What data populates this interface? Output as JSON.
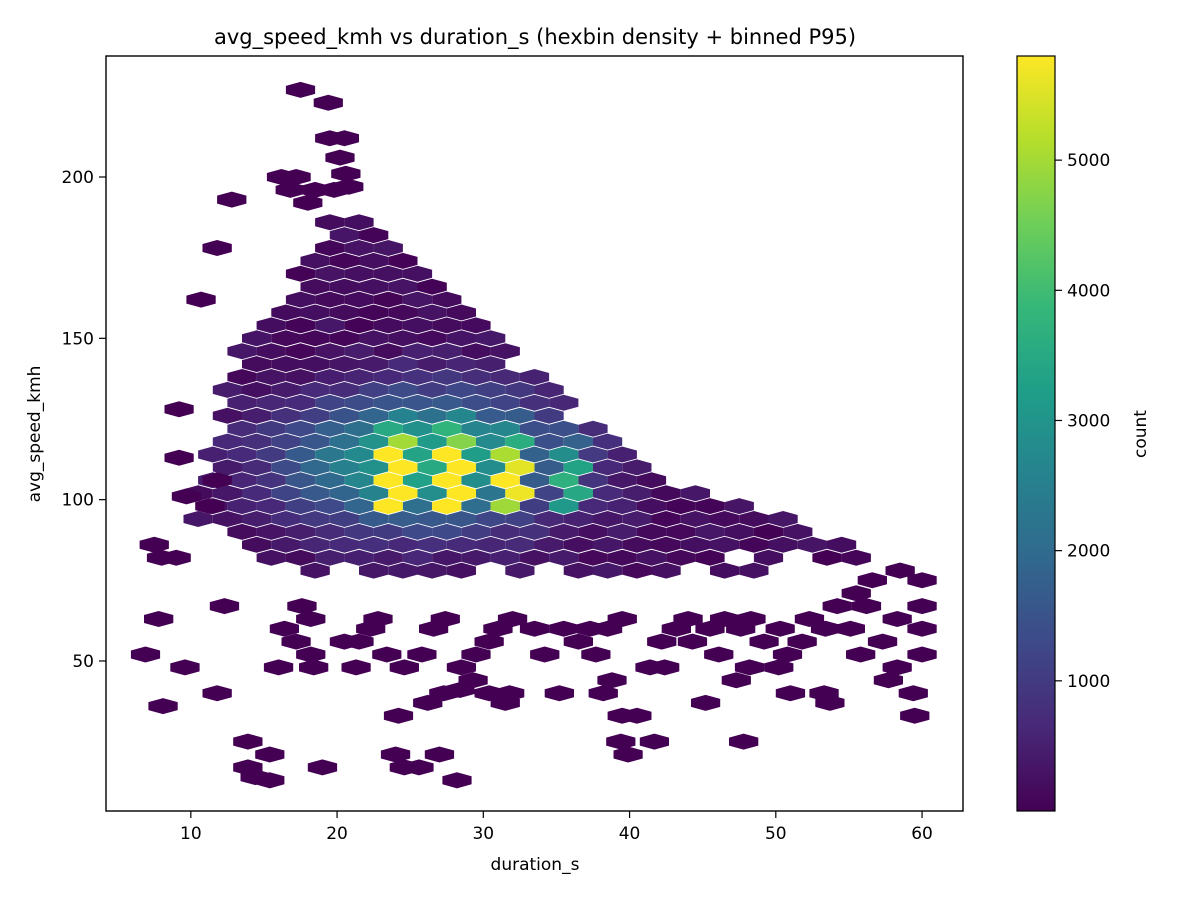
{
  "chart_data": {
    "type": "heatmap",
    "subtype": "hexbin",
    "title": "avg_speed_kmh vs duration_s (hexbin density + binned P95)",
    "xlabel": "duration_s",
    "ylabel": "avg_speed_kmh",
    "xlim": [
      4.2,
      62.8
    ],
    "ylim": [
      3.5,
      237.5
    ],
    "xticks": [
      10,
      20,
      30,
      40,
      50,
      60
    ],
    "yticks": [
      50,
      100,
      150,
      200
    ],
    "hex_grid": {
      "dx": 1.0,
      "dy": 4.0
    },
    "colormap": "viridis",
    "colors": [
      "#440154",
      "#482878",
      "#3e4989",
      "#31688e",
      "#26828e",
      "#1f9e89",
      "#35b779",
      "#6ece58",
      "#b5de2b",
      "#fde725"
    ],
    "colorbar": {
      "label": "count",
      "min": 0,
      "max": 5800,
      "ticks": [
        1000,
        2000,
        3000,
        4000,
        5000
      ]
    },
    "grid": false,
    "dense_region": {
      "x_range": [
        10.5,
        58.5
      ],
      "y_lower_boundary": [
        [
          10.5,
          94
        ],
        [
          13,
          86
        ],
        [
          15,
          80
        ],
        [
          20,
          77
        ],
        [
          30,
          78
        ],
        [
          40,
          76
        ],
        [
          50,
          78
        ],
        [
          55,
          80
        ],
        [
          58.5,
          77
        ]
      ],
      "y_upper_boundary": [
        [
          10.5,
          108
        ],
        [
          12,
          122
        ],
        [
          13,
          150
        ],
        [
          16,
          156
        ],
        [
          18,
          184
        ],
        [
          22,
          190
        ],
        [
          26,
          176
        ],
        [
          30,
          153
        ],
        [
          34,
          136
        ],
        [
          38,
          122
        ],
        [
          40,
          112
        ],
        [
          45,
          102
        ],
        [
          50,
          96
        ],
        [
          55,
          86
        ],
        [
          58.5,
          80
        ]
      ]
    },
    "hot_columns": [
      {
        "x": 24,
        "y_range": [
          96,
          128
        ],
        "peak": 5800
      },
      {
        "x": 28,
        "y_range": [
          98,
          128
        ],
        "peak": 5500
      },
      {
        "x": 32,
        "y_range": [
          98,
          130
        ],
        "peak": 4500
      },
      {
        "x": 36,
        "y_range": [
          98,
          128
        ],
        "peak": 3000
      }
    ],
    "sparse_points": [
      [
        17.5,
        227
      ],
      [
        19.4,
        223
      ],
      [
        19.5,
        212
      ],
      [
        20.5,
        212
      ],
      [
        20.2,
        206
      ],
      [
        20.6,
        201
      ],
      [
        16.2,
        200
      ],
      [
        17.2,
        200
      ],
      [
        16.8,
        196
      ],
      [
        18.5,
        196
      ],
      [
        19.8,
        196
      ],
      [
        20.8,
        197
      ],
      [
        18,
        192
      ],
      [
        12.8,
        193
      ],
      [
        11.8,
        178
      ],
      [
        10.7,
        162
      ],
      [
        9.2,
        128
      ],
      [
        9.2,
        113
      ],
      [
        9.7,
        101
      ],
      [
        11.3,
        98
      ],
      [
        11.8,
        106
      ],
      [
        7.5,
        86
      ],
      [
        8,
        82
      ],
      [
        9,
        82
      ],
      [
        7.8,
        63
      ],
      [
        12.3,
        67
      ],
      [
        6.9,
        52
      ],
      [
        9.6,
        48
      ],
      [
        11.8,
        40
      ],
      [
        8.1,
        36
      ],
      [
        13.9,
        25
      ],
      [
        15.4,
        21
      ],
      [
        13.9,
        17
      ],
      [
        14.4,
        14
      ],
      [
        15.4,
        13
      ],
      [
        19,
        17
      ],
      [
        24.2,
        33
      ],
      [
        24,
        21
      ],
      [
        24.6,
        17
      ],
      [
        25.6,
        17
      ],
      [
        27,
        21
      ],
      [
        28.2,
        13
      ],
      [
        26.2,
        37
      ],
      [
        27.3,
        40
      ],
      [
        28.4,
        41
      ],
      [
        29.3,
        44
      ],
      [
        30.4,
        40
      ],
      [
        31.5,
        37
      ],
      [
        31.8,
        40
      ],
      [
        35.2,
        40
      ],
      [
        38.2,
        40
      ],
      [
        38.8,
        44
      ],
      [
        39.5,
        33
      ],
      [
        40.5,
        33
      ],
      [
        39.4,
        25
      ],
      [
        39.9,
        21
      ],
      [
        41.7,
        25
      ],
      [
        45.2,
        37
      ],
      [
        47.8,
        25
      ],
      [
        47.3,
        44
      ],
      [
        48.2,
        48
      ],
      [
        50.2,
        48
      ],
      [
        51,
        40
      ],
      [
        53.3,
        40
      ],
      [
        53.7,
        37
      ],
      [
        57.7,
        44
      ],
      [
        58.3,
        48
      ],
      [
        59.4,
        40
      ],
      [
        59.5,
        33
      ],
      [
        55.8,
        52
      ],
      [
        57.3,
        56
      ],
      [
        58.3,
        63
      ],
      [
        58.5,
        78
      ],
      [
        60,
        75
      ],
      [
        60,
        67
      ],
      [
        60,
        60
      ],
      [
        60,
        52
      ],
      [
        18.4,
        48
      ],
      [
        20.5,
        56
      ],
      [
        21.5,
        56
      ],
      [
        22.3,
        60
      ],
      [
        22.8,
        63
      ],
      [
        21.3,
        48
      ],
      [
        23.4,
        52
      ],
      [
        24.6,
        48
      ],
      [
        25.8,
        52
      ],
      [
        26.6,
        60
      ],
      [
        27.4,
        63
      ],
      [
        28.5,
        48
      ],
      [
        29.5,
        52
      ],
      [
        30.4,
        56
      ],
      [
        31,
        60
      ],
      [
        32,
        63
      ],
      [
        33.5,
        60
      ],
      [
        34.2,
        52
      ],
      [
        35.5,
        60
      ],
      [
        36.5,
        56
      ],
      [
        37.3,
        60
      ],
      [
        37.7,
        52
      ],
      [
        38.5,
        60
      ],
      [
        39.5,
        63
      ],
      [
        41.4,
        48
      ],
      [
        42.4,
        48
      ],
      [
        42.2,
        56
      ],
      [
        43.2,
        60
      ],
      [
        44.3,
        56
      ],
      [
        44,
        63
      ],
      [
        45.5,
        60
      ],
      [
        46.1,
        52
      ],
      [
        46.5,
        63
      ],
      [
        47.6,
        60
      ],
      [
        48.3,
        63
      ],
      [
        49.2,
        56
      ],
      [
        50.3,
        60
      ],
      [
        50.8,
        52
      ],
      [
        51.8,
        56
      ],
      [
        52.3,
        63
      ],
      [
        53.4,
        60
      ],
      [
        54.2,
        67
      ],
      [
        55.1,
        60
      ],
      [
        55.5,
        71
      ],
      [
        56.6,
        75
      ],
      [
        56.2,
        67
      ],
      [
        16.4,
        60
      ],
      [
        17.2,
        56
      ],
      [
        18.2,
        63
      ],
      [
        17.6,
        67
      ],
      [
        18.2,
        52
      ],
      [
        16,
        48
      ]
    ]
  }
}
